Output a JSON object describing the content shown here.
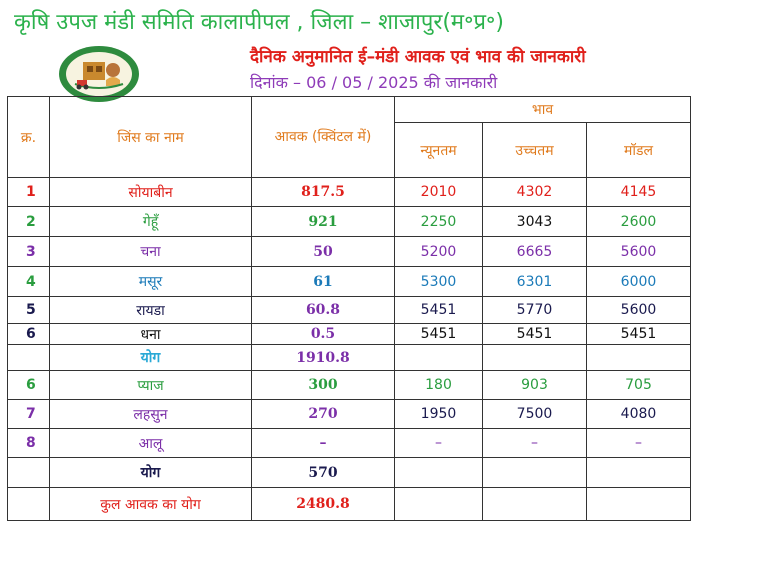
{
  "header": {
    "title": "कृषि उपज मंडी समिति कालापीपल , जिला – शाजापुर(म॰प्र॰)",
    "subtitle": "दैनिक अनुमानित ई–मंडी आवक एवं भाव की जानकारी",
    "date_line": "दिनांक  – 06 / 05 / 2025 की जानकारी"
  },
  "logo": {
    "icon": "mandi-board-seal-icon"
  },
  "table": {
    "col_index": "क्र.",
    "col_crop": "जिंस का नाम",
    "col_arrival": "आवक (क्विंटल में)",
    "col_price_group": "भाव",
    "col_min": "न्यूनतम",
    "col_max": "उच्चतम",
    "col_modal": "मॉडल",
    "rows": [
      {
        "idx": "1",
        "crop": "सोयाबीन",
        "arrival": "817.5",
        "min": "2010",
        "max": "4302",
        "modal": "4145"
      },
      {
        "idx": "2",
        "crop": "गेहूँ",
        "arrival": "921",
        "min": "2250",
        "max": "3043",
        "modal": "2600"
      },
      {
        "idx": "3",
        "crop": "चना",
        "arrival": "50",
        "min": "5200",
        "max": "6665",
        "modal": "5600"
      },
      {
        "idx": "4",
        "crop": "मसूर",
        "arrival": "61",
        "min": "5300",
        "max": "6301",
        "modal": "6000"
      },
      {
        "idx": "5",
        "crop": "रायडा",
        "arrival": "60.8",
        "min": "5451",
        "max": "5770",
        "modal": "5600"
      },
      {
        "idx": "6",
        "crop": "धना",
        "arrival": "0.5",
        "min": "5451",
        "max": "5451",
        "modal": "5451"
      }
    ],
    "subtotal1_label": "योग",
    "subtotal1_value": "1910.8",
    "rows2": [
      {
        "idx": "6",
        "crop": "प्याज",
        "arrival": "300",
        "min": "180",
        "max": "903",
        "modal": "705"
      },
      {
        "idx": "7",
        "crop": "लहसुन",
        "arrival": "270",
        "min": "1950",
        "max": "7500",
        "modal": "4080"
      },
      {
        "idx": "8",
        "crop": "आलू",
        "arrival": "–",
        "min": "–",
        "max": "–",
        "modal": "–"
      }
    ],
    "subtotal2_label": "योग",
    "subtotal2_value": "570",
    "total_label": "कुल आवक का योग",
    "total_value": "2480.8"
  },
  "colors": {
    "title_green": "#2bb24c",
    "subtitle_red": "#e0201b",
    "date_purple": "#8e3bb8",
    "header_orange": "#e07b1e"
  }
}
